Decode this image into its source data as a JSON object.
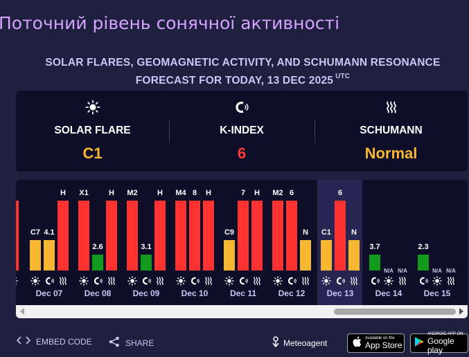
{
  "page": {
    "title": "Поточний рівень сонячної активності",
    "subtitle_line1": "SOLAR FLARES, GEOMAGNETIC ACTIVITY, AND SCHUMANN RESONANCE",
    "subtitle_line2": "FORECAST FOR TODAY, 13 DEC 2025",
    "subtitle_tz": "UTC"
  },
  "summary": [
    {
      "icon": "sun-icon",
      "label": "SOLAR FLARE",
      "value": "C1",
      "color": "#f5b731"
    },
    {
      "icon": "magnet-icon",
      "label": "K-INDEX",
      "value": "6",
      "color": "#ff3b3b"
    },
    {
      "icon": "schumann-wave-icon",
      "label": "SCHUMANN",
      "value": "Normal",
      "color": "#f5b731"
    }
  ],
  "colors": {
    "red": "#ff3232",
    "yellow": "#f7b731",
    "green": "#139a1c"
  },
  "chart_data": {
    "type": "bar",
    "metrics": [
      "solar-flare",
      "k-index",
      "schumann"
    ],
    "today": "Dec 13",
    "days": [
      {
        "date": "",
        "bars": [
          {
            "label": "",
            "level": 1.0,
            "color": "red"
          }
        ]
      },
      {
        "date": "Dec 07",
        "bars": [
          {
            "label": "C7",
            "level": 0.44,
            "color": "yellow"
          },
          {
            "label": "4.1",
            "level": 0.44,
            "color": "yellow"
          },
          {
            "label": "H",
            "level": 1.0,
            "color": "red"
          }
        ]
      },
      {
        "date": "Dec 08",
        "bars": [
          {
            "label": "X1",
            "level": 1.0,
            "color": "red"
          },
          {
            "label": "2.6",
            "level": 0.23,
            "color": "green"
          },
          {
            "label": "H",
            "level": 1.0,
            "color": "red"
          }
        ]
      },
      {
        "date": "Dec 09",
        "bars": [
          {
            "label": "M2",
            "level": 1.0,
            "color": "red"
          },
          {
            "label": "3.1",
            "level": 0.23,
            "color": "green"
          },
          {
            "label": "H",
            "level": 1.0,
            "color": "red"
          }
        ]
      },
      {
        "date": "Dec 10",
        "bars": [
          {
            "label": "M4",
            "level": 1.0,
            "color": "red"
          },
          {
            "label": "8",
            "level": 1.0,
            "color": "red"
          },
          {
            "label": "H",
            "level": 1.0,
            "color": "red"
          }
        ]
      },
      {
        "date": "Dec 11",
        "bars": [
          {
            "label": "C9",
            "level": 0.44,
            "color": "yellow"
          },
          {
            "label": "7",
            "level": 1.0,
            "color": "red"
          },
          {
            "label": "H",
            "level": 1.0,
            "color": "red"
          }
        ]
      },
      {
        "date": "Dec 12",
        "bars": [
          {
            "label": "M2",
            "level": 1.0,
            "color": "red"
          },
          {
            "label": "6",
            "level": 1.0,
            "color": "red"
          },
          {
            "label": "N",
            "level": 0.44,
            "color": "yellow"
          }
        ]
      },
      {
        "date": "Dec 13",
        "bars": [
          {
            "label": "C1",
            "level": 0.44,
            "color": "yellow"
          },
          {
            "label": "6",
            "level": 1.0,
            "color": "red"
          },
          {
            "label": "N",
            "level": 0.44,
            "color": "yellow"
          }
        ]
      },
      {
        "date": "Dec 14",
        "icon_order": [
          "magnet-icon",
          "sun-icon",
          "schumann-wave-icon"
        ],
        "bars": [
          {
            "label": "3.7",
            "level": 0.23,
            "color": "green"
          },
          {
            "label": "N/A",
            "level": 0,
            "color": "none"
          },
          {
            "label": "N/A",
            "level": 0,
            "color": "none"
          }
        ]
      },
      {
        "date": "Dec 15",
        "icon_order": [
          "magnet-icon",
          "sun-icon",
          "schumann-wave-icon"
        ],
        "bars": [
          {
            "label": "2.3",
            "level": 0.23,
            "color": "green"
          },
          {
            "label": "N/A",
            "level": 0,
            "color": "none"
          },
          {
            "label": "N/A",
            "level": 0,
            "color": "none"
          }
        ]
      }
    ]
  },
  "footer": {
    "embed_label": "EMBED CODE",
    "share_label": "SHARE",
    "brand": "Meteoagent",
    "appstore_small": "Available on the",
    "appstore_big": "App Store",
    "googleplay_small": "ANDROID APP ON",
    "googleplay_big": "Google play"
  }
}
